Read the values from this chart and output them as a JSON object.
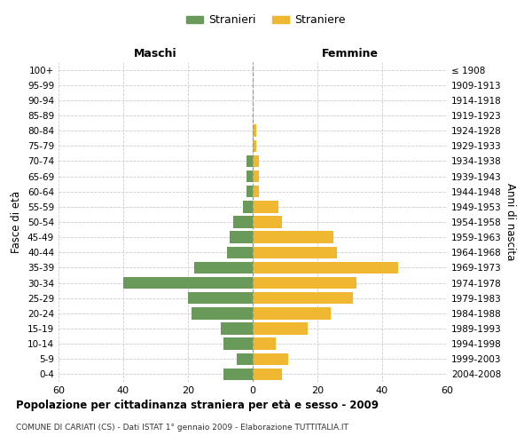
{
  "age_groups": [
    "0-4",
    "5-9",
    "10-14",
    "15-19",
    "20-24",
    "25-29",
    "30-34",
    "35-39",
    "40-44",
    "45-49",
    "50-54",
    "55-59",
    "60-64",
    "65-69",
    "70-74",
    "75-79",
    "80-84",
    "85-89",
    "90-94",
    "95-99",
    "100+"
  ],
  "birth_years": [
    "2004-2008",
    "1999-2003",
    "1994-1998",
    "1989-1993",
    "1984-1988",
    "1979-1983",
    "1974-1978",
    "1969-1973",
    "1964-1968",
    "1959-1963",
    "1954-1958",
    "1949-1953",
    "1944-1948",
    "1939-1943",
    "1934-1938",
    "1929-1933",
    "1924-1928",
    "1919-1923",
    "1914-1918",
    "1909-1913",
    "≤ 1908"
  ],
  "maschi": [
    9,
    5,
    9,
    10,
    19,
    20,
    40,
    18,
    8,
    7,
    6,
    3,
    2,
    2,
    2,
    0,
    0,
    0,
    0,
    0,
    0
  ],
  "femmine": [
    9,
    11,
    7,
    17,
    24,
    31,
    32,
    45,
    26,
    25,
    9,
    8,
    2,
    2,
    2,
    1,
    1,
    0,
    0,
    0,
    0
  ],
  "maschi_color": "#6a9a5a",
  "femmine_color": "#f0b830",
  "title": "Popolazione per cittadinanza straniera per età e sesso - 2009",
  "subtitle": "COMUNE DI CARIATI (CS) - Dati ISTAT 1° gennaio 2009 - Elaborazione TUTTITALIA.IT",
  "ylabel_left": "Fasce di età",
  "ylabel_right": "Anni di nascita",
  "xlabel_left": "Maschi",
  "xlabel_right": "Femmine",
  "legend_maschi": "Stranieri",
  "legend_femmine": "Straniere",
  "xlim": 60,
  "background_color": "#ffffff",
  "grid_color": "#cccccc"
}
